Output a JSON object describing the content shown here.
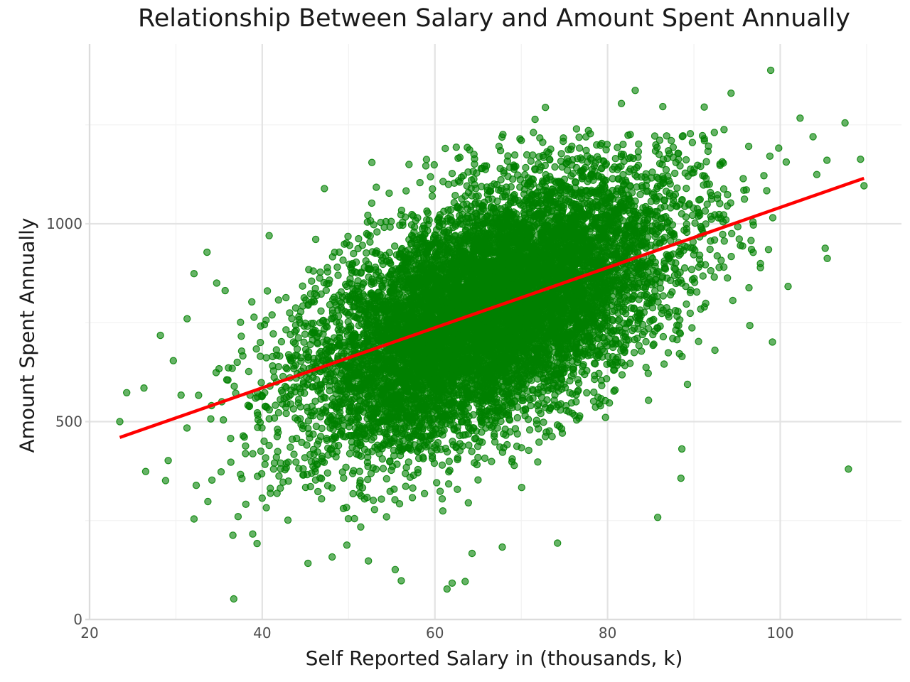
{
  "chart_data": {
    "type": "scatter",
    "title": "Relationship Between Salary and Amount Spent Annually",
    "xlabel": "Self Reported Salary in (thousands, k)",
    "ylabel": "Amount Spent Annually",
    "xlim": [
      20,
      112
    ],
    "ylim": [
      0,
      1380
    ],
    "x_ticks": [
      20,
      40,
      60,
      80,
      100
    ],
    "y_ticks": [
      0,
      500,
      1000
    ],
    "grid": true,
    "legend": "none",
    "series": [
      {
        "marker": "circle",
        "color": "#008000",
        "opacity": 0.6,
        "n_points_approx": 10000,
        "cloud": {
          "x_mean": 66,
          "x_sd": 10.5,
          "y_mean": 780,
          "y_sd": 170,
          "correlation": 0.55
        },
        "outliers": [
          {
            "x": 23.5,
            "y": 500
          },
          {
            "x": 24.3,
            "y": 573
          },
          {
            "x": 26.3,
            "y": 585
          },
          {
            "x": 26.5,
            "y": 374
          },
          {
            "x": 28.2,
            "y": 718
          },
          {
            "x": 28.8,
            "y": 351
          },
          {
            "x": 29.7,
            "y": 654
          },
          {
            "x": 30.6,
            "y": 567
          },
          {
            "x": 31.3,
            "y": 760
          },
          {
            "x": 32.1,
            "y": 874
          },
          {
            "x": 32.1,
            "y": 254
          },
          {
            "x": 33.6,
            "y": 928
          },
          {
            "x": 33.7,
            "y": 298
          },
          {
            "x": 35.7,
            "y": 831
          },
          {
            "x": 36.6,
            "y": 213
          },
          {
            "x": 36.7,
            "y": 52
          },
          {
            "x": 37.2,
            "y": 260
          },
          {
            "x": 38.9,
            "y": 216
          },
          {
            "x": 39.4,
            "y": 192
          },
          {
            "x": 40.8,
            "y": 970
          },
          {
            "x": 45.3,
            "y": 142
          },
          {
            "x": 47.2,
            "y": 1089
          },
          {
            "x": 48.1,
            "y": 158
          },
          {
            "x": 49.8,
            "y": 188
          },
          {
            "x": 52.3,
            "y": 148
          },
          {
            "x": 52.7,
            "y": 1155
          },
          {
            "x": 55.4,
            "y": 126
          },
          {
            "x": 56.1,
            "y": 98
          },
          {
            "x": 57.0,
            "y": 1150
          },
          {
            "x": 61.4,
            "y": 77
          },
          {
            "x": 62.0,
            "y": 92
          },
          {
            "x": 63.5,
            "y": 96
          },
          {
            "x": 64.3,
            "y": 167
          },
          {
            "x": 67.8,
            "y": 183
          },
          {
            "x": 71.6,
            "y": 1264
          },
          {
            "x": 72.8,
            "y": 1294
          },
          {
            "x": 74.2,
            "y": 193
          },
          {
            "x": 81.6,
            "y": 1304
          },
          {
            "x": 83.2,
            "y": 1337
          },
          {
            "x": 85.8,
            "y": 258
          },
          {
            "x": 86.4,
            "y": 1296
          },
          {
            "x": 88.5,
            "y": 357
          },
          {
            "x": 88.6,
            "y": 431
          },
          {
            "x": 91.2,
            "y": 1295
          },
          {
            "x": 94.3,
            "y": 1330
          },
          {
            "x": 98.9,
            "y": 1388
          },
          {
            "x": 102.3,
            "y": 1267
          },
          {
            "x": 103.8,
            "y": 1220
          },
          {
            "x": 107.5,
            "y": 1255
          },
          {
            "x": 107.9,
            "y": 380
          },
          {
            "x": 109.3,
            "y": 1163
          },
          {
            "x": 109.7,
            "y": 1096
          }
        ]
      }
    ],
    "trend_line": {
      "type": "linear",
      "color": "#ff0000",
      "x": [
        23.5,
        109.7
      ],
      "y": [
        460,
        1115
      ]
    }
  }
}
